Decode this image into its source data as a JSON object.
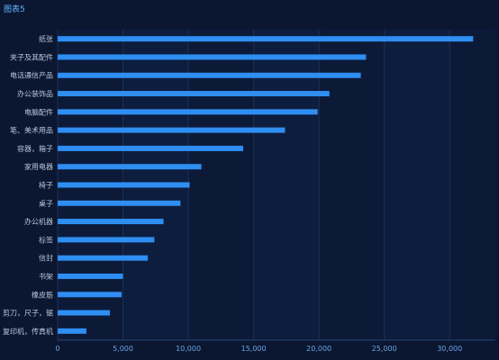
{
  "title": "图表5",
  "chart_data": {
    "type": "bar",
    "orientation": "horizontal",
    "title": "图表5",
    "categories": [
      "纸张",
      "夹子及其配件",
      "电话通信产品",
      "办公装饰品",
      "电脑配件",
      "笔、美术用品",
      "容器，箱子",
      "家用电器",
      "椅子",
      "桌子",
      "办公机器",
      "标签",
      "信封",
      "书架",
      "橡皮筋",
      "剪刀，尺子，锯",
      "复印机，传真机"
    ],
    "values": [
      31800,
      23600,
      23200,
      20800,
      19900,
      17400,
      14200,
      11000,
      10100,
      9400,
      8100,
      7400,
      6900,
      5000,
      4900,
      4000,
      2200
    ],
    "xlim": [
      0,
      33500
    ],
    "xticks": [
      0,
      5000,
      10000,
      15000,
      20000,
      25000,
      30000
    ],
    "xtick_labels": [
      "0",
      "5,000",
      "10,000",
      "15,000",
      "20,000",
      "25,000",
      "30,000"
    ],
    "grid": true,
    "colors": {
      "bar": "#2e8ef2",
      "background": "#0b1630",
      "plot_bg": "#0c1a38",
      "grid": "#1b3157"
    }
  }
}
